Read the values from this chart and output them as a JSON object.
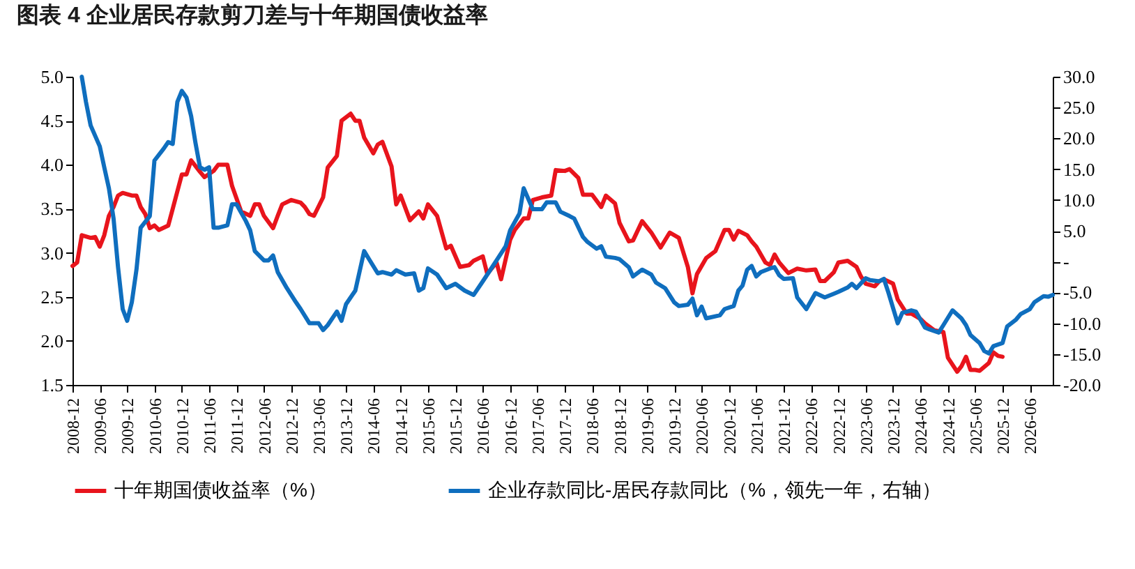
{
  "chart_data": {
    "type": "line",
    "title": "图表 4   企业居民存款剪刀差与十年期国债收益率",
    "xlim": [
      "2008-12",
      "2026-11"
    ],
    "xticks": [
      "2008-12",
      "2009-06",
      "2009-12",
      "2010-06",
      "2010-12",
      "2011-06",
      "2011-12",
      "2012-06",
      "2012-12",
      "2013-06",
      "2013-12",
      "2014-06",
      "2014-12",
      "2015-06",
      "2015-12",
      "2016-06",
      "2016-12",
      "2017-06",
      "2017-12",
      "2018-06",
      "2018-12",
      "2019-06",
      "2019-12",
      "2020-06",
      "2020-12",
      "2021-06",
      "2021-12",
      "2022-06",
      "2022-12",
      "2023-06",
      "2023-12",
      "2024-06",
      "2024-12",
      "2025-06",
      "2025-12",
      "2026-06"
    ],
    "ylim": [
      1.5,
      5.0
    ],
    "yticks": [
      {
        "value": 1.5,
        "label": "1.5"
      },
      {
        "value": 2,
        "label": "2.0"
      },
      {
        "value": 2.5,
        "label": "2.5"
      },
      {
        "value": 3,
        "label": "3.0"
      },
      {
        "value": 3.5,
        "label": "3.5"
      },
      {
        "value": 4,
        "label": "4.0"
      },
      {
        "value": 4.5,
        "label": "4.5"
      },
      {
        "value": 5,
        "label": "5.0"
      }
    ],
    "y2lim": [
      -20,
      30
    ],
    "y2ticks": [
      {
        "value": -20,
        "label": "-20.0"
      },
      {
        "value": -15,
        "label": "-15.0"
      },
      {
        "value": -10,
        "label": "-10.0"
      },
      {
        "value": -5,
        "label": "-5.0"
      },
      {
        "value": 0,
        "label": "-"
      },
      {
        "value": 5,
        "label": "5.0"
      },
      {
        "value": 10,
        "label": "10.0"
      },
      {
        "value": 15,
        "label": "15.0"
      },
      {
        "value": 20,
        "label": "20.0"
      },
      {
        "value": 25,
        "label": "25.0"
      },
      {
        "value": 30,
        "label": "30.0"
      }
    ],
    "grid": false,
    "legend": "bottom",
    "marker": "none",
    "line_style": "solid",
    "series": [
      {
        "name": "十年期国债收益率（%）",
        "color": "#e8141c",
        "x": [
          "2008-12",
          "2009-01",
          "2009-02",
          "2009-04",
          "2009-05",
          "2009-06",
          "2009-07",
          "2009-08",
          "2009-09",
          "2009-10",
          "2009-11",
          "2010-01",
          "2010-02",
          "2010-03",
          "2010-04",
          "2010-05",
          "2010-06",
          "2010-07",
          "2010-09",
          "2010-10",
          "2010-12",
          "2011-01",
          "2011-02",
          "2011-04",
          "2011-05",
          "2011-07",
          "2011-08",
          "2011-10",
          "2011-11",
          "2012-01",
          "2012-03",
          "2012-04",
          "2012-05",
          "2012-06",
          "2012-08",
          "2012-09",
          "2012-10",
          "2012-12",
          "2013-02",
          "2013-03",
          "2013-04",
          "2013-05",
          "2013-07",
          "2013-08",
          "2013-10",
          "2013-11",
          "2014-01",
          "2014-02",
          "2014-03",
          "2014-04",
          "2014-06",
          "2014-07",
          "2014-08",
          "2014-10",
          "2014-11",
          "2014-12",
          "2015-02",
          "2015-04",
          "2015-05",
          "2015-06",
          "2015-08",
          "2015-10",
          "2015-11",
          "2016-01",
          "2016-03",
          "2016-04",
          "2016-06",
          "2016-07",
          "2016-09",
          "2016-10",
          "2016-12",
          "2017-01",
          "2017-03",
          "2017-04",
          "2017-05",
          "2017-07",
          "2017-09",
          "2017-10",
          "2017-12",
          "2018-01",
          "2018-03",
          "2018-04",
          "2018-06",
          "2018-08",
          "2018-09",
          "2018-11",
          "2018-12",
          "2019-02",
          "2019-03",
          "2019-05",
          "2019-07",
          "2019-09",
          "2019-11",
          "2020-01",
          "2020-03",
          "2020-04",
          "2020-05",
          "2020-07",
          "2020-09",
          "2020-11",
          "2020-12",
          "2021-01",
          "2021-02",
          "2021-04",
          "2021-05",
          "2021-06",
          "2021-08",
          "2021-09",
          "2021-10",
          "2021-11",
          "2022-01",
          "2022-03",
          "2022-05",
          "2022-07",
          "2022-08",
          "2022-09",
          "2022-11",
          "2022-12",
          "2023-02",
          "2023-04",
          "2023-05",
          "2023-06",
          "2023-08",
          "2023-09",
          "2023-10",
          "2023-12",
          "2024-01",
          "2024-03",
          "2024-04",
          "2024-06",
          "2024-07",
          "2024-09",
          "2024-11",
          "2024-12",
          "2025-02",
          "2025-03",
          "2025-04",
          "2025-05",
          "2025-06",
          "2025-07",
          "2025-09",
          "2025-10",
          "2025-11",
          "2025-12"
        ],
        "values": [
          2.85,
          2.89,
          3.2,
          3.17,
          3.18,
          3.07,
          3.2,
          3.42,
          3.52,
          3.65,
          3.68,
          3.65,
          3.65,
          3.52,
          3.44,
          3.28,
          3.31,
          3.26,
          3.31,
          3.5,
          3.89,
          3.89,
          4.05,
          3.92,
          3.86,
          3.93,
          4.0,
          4.0,
          3.76,
          3.47,
          3.42,
          3.55,
          3.55,
          3.42,
          3.28,
          3.42,
          3.55,
          3.6,
          3.57,
          3.52,
          3.44,
          3.42,
          3.63,
          3.97,
          4.1,
          4.5,
          4.58,
          4.5,
          4.5,
          4.31,
          4.13,
          4.23,
          4.26,
          3.98,
          3.55,
          3.65,
          3.37,
          3.47,
          3.39,
          3.55,
          3.42,
          3.05,
          3.08,
          2.84,
          2.86,
          2.91,
          2.96,
          2.76,
          2.89,
          2.7,
          3.15,
          3.26,
          3.39,
          3.39,
          3.6,
          3.63,
          3.65,
          3.94,
          3.93,
          3.95,
          3.85,
          3.66,
          3.66,
          3.52,
          3.65,
          3.56,
          3.34,
          3.13,
          3.14,
          3.36,
          3.23,
          3.06,
          3.23,
          3.17,
          2.84,
          2.54,
          2.76,
          2.94,
          3.02,
          3.26,
          3.26,
          3.15,
          3.25,
          3.2,
          3.13,
          3.07,
          2.89,
          2.86,
          2.98,
          2.89,
          2.77,
          2.82,
          2.8,
          2.81,
          2.68,
          2.68,
          2.78,
          2.89,
          2.91,
          2.84,
          2.73,
          2.65,
          2.62,
          2.68,
          2.7,
          2.65,
          2.47,
          2.31,
          2.31,
          2.25,
          2.2,
          2.12,
          2.1,
          1.81,
          1.65,
          1.71,
          1.82,
          1.67,
          1.67,
          1.66,
          1.75,
          1.87,
          1.83,
          1.82
        ]
      },
      {
        "name": "企业存款同比-居民存款同比（%，领先一年，右轴）",
        "color": "#0f6ebe",
        "axis": "y2",
        "x": [
          "2009-02",
          "2009-03",
          "2009-04",
          "2009-06",
          "2009-07",
          "2009-08",
          "2009-09",
          "2009-10",
          "2009-11",
          "2009-12",
          "2010-01",
          "2010-02",
          "2010-03",
          "2010-05",
          "2010-06",
          "2010-08",
          "2010-09",
          "2010-10",
          "2010-11",
          "2010-12",
          "2011-01",
          "2011-02",
          "2011-03",
          "2011-04",
          "2011-05",
          "2011-06",
          "2011-07",
          "2011-08",
          "2011-10",
          "2011-11",
          "2011-12",
          "2012-02",
          "2012-03",
          "2012-04",
          "2012-06",
          "2012-07",
          "2012-08",
          "2012-09",
          "2012-11",
          "2013-01",
          "2013-02",
          "2013-04",
          "2013-06",
          "2013-07",
          "2013-08",
          "2013-10",
          "2013-11",
          "2013-12",
          "2014-02",
          "2014-04",
          "2014-05",
          "2014-07",
          "2014-08",
          "2014-10",
          "2014-11",
          "2015-01",
          "2015-03",
          "2015-04",
          "2015-05",
          "2015-06",
          "2015-08",
          "2015-10",
          "2015-12",
          "2016-02",
          "2016-04",
          "2016-06",
          "2016-07",
          "2016-09",
          "2016-11",
          "2016-12",
          "2017-02",
          "2017-03",
          "2017-05",
          "2017-07",
          "2017-08",
          "2017-10",
          "2017-11",
          "2018-01",
          "2018-02",
          "2018-04",
          "2018-05",
          "2018-07",
          "2018-08",
          "2018-09",
          "2018-11",
          "2018-12",
          "2019-02",
          "2019-03",
          "2019-05",
          "2019-07",
          "2019-08",
          "2019-10",
          "2019-12",
          "2020-01",
          "2020-03",
          "2020-04",
          "2020-05",
          "2020-06",
          "2020-07",
          "2020-10",
          "2020-11",
          "2021-01",
          "2021-02",
          "2021-03",
          "2021-04",
          "2021-05",
          "2021-06",
          "2021-07",
          "2021-09",
          "2021-10",
          "2021-11",
          "2021-12",
          "2022-02",
          "2022-03",
          "2022-05",
          "2022-07",
          "2022-09",
          "2022-11",
          "2022-12",
          "2023-02",
          "2023-03",
          "2023-04",
          "2023-06",
          "2023-07",
          "2023-09",
          "2023-10",
          "2023-11",
          "2024-01",
          "2024-02",
          "2024-04",
          "2024-05",
          "2024-07",
          "2024-08",
          "2024-10",
          "2024-11",
          "2025-01",
          "2025-03",
          "2025-04",
          "2025-05",
          "2025-07",
          "2025-08",
          "2025-09",
          "2025-10",
          "2025-12",
          "2026-01",
          "2026-03",
          "2026-04",
          "2026-06",
          "2026-07",
          "2026-09",
          "2026-10",
          "2026-11"
        ],
        "values": [
          30.0,
          25.9,
          22.1,
          18.7,
          15.3,
          11.9,
          7.0,
          -0.9,
          -7.7,
          -9.6,
          -6.6,
          -1.3,
          5.5,
          7.4,
          16.4,
          18.3,
          19.4,
          19.1,
          25.9,
          27.7,
          26.6,
          23.6,
          19.4,
          15.3,
          14.9,
          15.3,
          5.5,
          5.5,
          5.9,
          9.3,
          9.3,
          6.6,
          5.1,
          1.7,
          0.2,
          0.2,
          1.0,
          -1.7,
          -4.3,
          -6.6,
          -7.7,
          -10.0,
          -10.0,
          -11.1,
          -10.3,
          -8.1,
          -9.6,
          -6.9,
          -4.7,
          1.7,
          0.5,
          -1.9,
          -1.7,
          -2.1,
          -1.4,
          -2.1,
          -1.9,
          -4.7,
          -4.3,
          -1.1,
          -2.1,
          -4.3,
          -3.6,
          -4.7,
          -5.4,
          -3.2,
          -2.1,
          0.2,
          2.5,
          5.1,
          7.8,
          11.9,
          8.5,
          8.5,
          9.6,
          9.6,
          8.1,
          7.4,
          7.0,
          4.0,
          3.2,
          2.1,
          2.5,
          0.8,
          0.6,
          0.4,
          -0.9,
          -2.4,
          -1.3,
          -2.1,
          -3.4,
          -4.3,
          -6.6,
          -7.2,
          -7.0,
          -6.0,
          -8.7,
          -7.3,
          -9.2,
          -8.7,
          -7.7,
          -7.2,
          -4.7,
          -3.9,
          -1.3,
          -0.7,
          -2.4,
          -1.7,
          -1.1,
          -0.9,
          -2.2,
          -2.8,
          -2.7,
          -5.8,
          -7.7,
          -5.1,
          -5.8,
          -5.2,
          -4.9,
          -4.2,
          -3.6,
          -4.3,
          -2.7,
          -3.0,
          -3.2,
          -2.8,
          -5.1,
          -10.0,
          -8.3,
          -7.9,
          -8.1,
          -10.7,
          -11.0,
          -11.5,
          -10.3,
          -7.9,
          -9.2,
          -10.3,
          -11.9,
          -13.2,
          -14.5,
          -14.9,
          -13.7,
          -13.2,
          -10.5,
          -9.4,
          -8.5,
          -7.7,
          -6.6,
          -5.6,
          -5.7,
          -5.4
        ]
      }
    ]
  }
}
